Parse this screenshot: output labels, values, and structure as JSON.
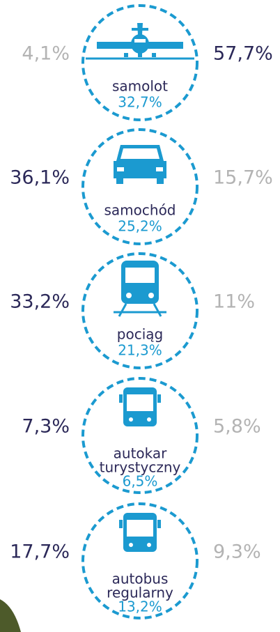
{
  "items": [
    {
      "label": [
        "samolot"
      ],
      "value": "32,7%",
      "left": "4,1%",
      "right": "57,7%",
      "left_color": "#b3b3b3",
      "right_color": "#2b2858"
    },
    {
      "label": [
        "samochód"
      ],
      "value": "25,2%",
      "left": "36,1%",
      "right": "15,7%",
      "left_color": "#2b2858",
      "right_color": "#b3b3b3"
    },
    {
      "label": [
        "pociąg"
      ],
      "value": "21,3%",
      "left": "33,2%",
      "right": "11%",
      "left_color": "#2b2858",
      "right_color": "#b3b3b3"
    },
    {
      "label": [
        "autokar",
        "turystyczny"
      ],
      "value": "6,5%",
      "left": "7,3%",
      "right": "5,8%",
      "left_color": "#2b2858",
      "right_color": "#b3b3b3"
    },
    {
      "label": [
        "autobus",
        "regularny"
      ],
      "value": "13,2%",
      "left": "17,7%",
      "right": "9,3%",
      "left_color": "#2b2858",
      "right_color": "#b3b3b3"
    }
  ]
}
